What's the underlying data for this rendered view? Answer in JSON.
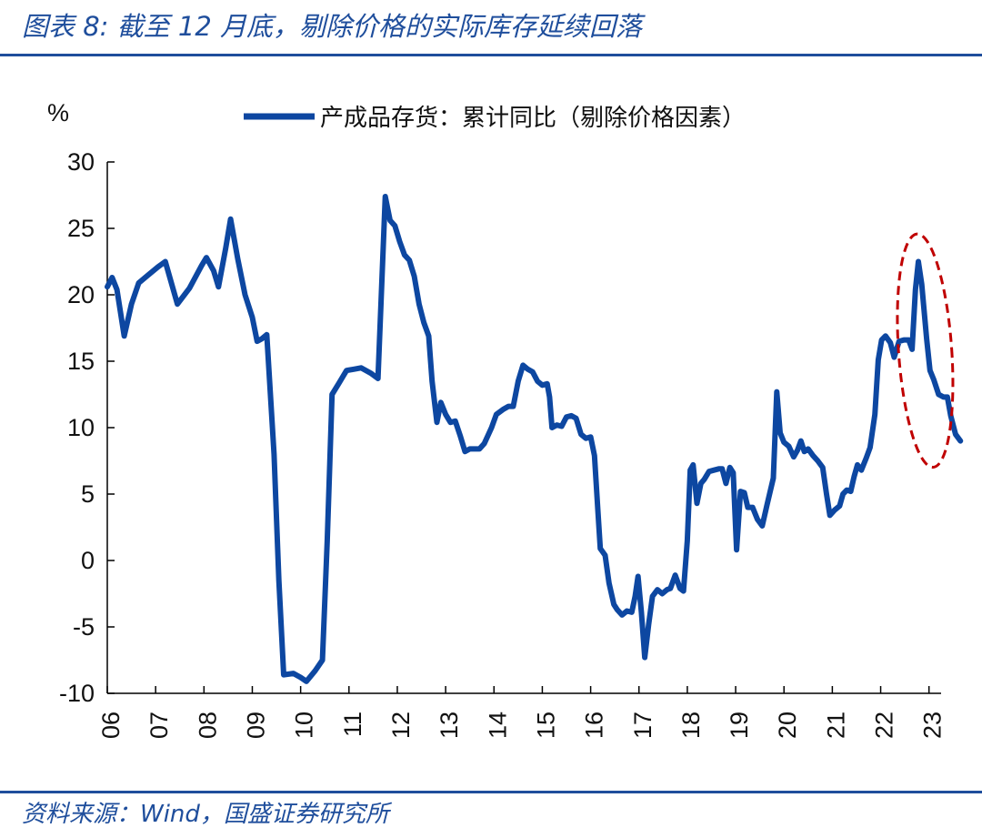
{
  "header": {
    "title": "图表 8:  截至 12 月底，剔除价格的实际库存延续回落"
  },
  "footer": {
    "source": "资料来源：Wind，国盛证券研究所"
  },
  "colors": {
    "series": "#0d47a1",
    "annotation": "#c00000",
    "title": "#1f4e9c"
  },
  "chart_data": {
    "type": "line",
    "ylabel": "%",
    "ylim": [
      -10,
      30
    ],
    "yticks": [
      30,
      25,
      20,
      15,
      10,
      5,
      0,
      -5,
      -10
    ],
    "xlim": [
      2006.0,
      2023.25
    ],
    "xticks": [
      {
        "label": "06",
        "x": 2006.0
      },
      {
        "label": "07",
        "x": 2007.0
      },
      {
        "label": "08",
        "x": 2008.0
      },
      {
        "label": "09",
        "x": 2009.0
      },
      {
        "label": "10",
        "x": 2010.0
      },
      {
        "label": "11",
        "x": 2011.0
      },
      {
        "label": "12",
        "x": 2012.0
      },
      {
        "label": "13",
        "x": 2013.0
      },
      {
        "label": "14",
        "x": 2014.0
      },
      {
        "label": "15",
        "x": 2015.0
      },
      {
        "label": "16",
        "x": 2016.0
      },
      {
        "label": "17",
        "x": 2017.0
      },
      {
        "label": "18",
        "x": 2018.0
      },
      {
        "label": "19",
        "x": 2019.0
      },
      {
        "label": "20",
        "x": 2020.0
      },
      {
        "label": "21",
        "x": 2021.0
      },
      {
        "label": "22",
        "x": 2022.0
      },
      {
        "label": "23",
        "x": 2023.0
      }
    ],
    "legend_position": "top",
    "series": [
      {
        "name": "产成品存货：累计同比（剔除价格因素）",
        "points": [
          [
            2006.0,
            20.6
          ],
          [
            2006.1,
            21.3
          ],
          [
            2006.2,
            20.4
          ],
          [
            2006.35,
            16.9
          ],
          [
            2006.5,
            19.3
          ],
          [
            2006.65,
            20.9
          ],
          [
            2006.85,
            21.5
          ],
          [
            2007.05,
            22.1
          ],
          [
            2007.2,
            22.5
          ],
          [
            2007.45,
            19.3
          ],
          [
            2007.7,
            20.5
          ],
          [
            2007.95,
            22.2
          ],
          [
            2008.05,
            22.8
          ],
          [
            2008.2,
            21.8
          ],
          [
            2008.3,
            20.6
          ],
          [
            2008.45,
            23.5
          ],
          [
            2008.55,
            25.7
          ],
          [
            2008.7,
            22.7
          ],
          [
            2008.85,
            20.0
          ],
          [
            2009.0,
            18.3
          ],
          [
            2009.1,
            16.5
          ],
          [
            2009.2,
            16.7
          ],
          [
            2009.3,
            17.0
          ],
          [
            2009.45,
            8.0
          ],
          [
            2009.55,
            -1.5
          ],
          [
            2009.65,
            -8.6
          ],
          [
            2009.85,
            -8.5
          ],
          [
            2010.0,
            -8.8
          ],
          [
            2010.12,
            -9.1
          ],
          [
            2010.3,
            -8.3
          ],
          [
            2010.45,
            -7.5
          ],
          [
            2010.55,
            1.5
          ],
          [
            2010.65,
            12.5
          ],
          [
            2010.8,
            13.4
          ],
          [
            2010.95,
            14.3
          ],
          [
            2011.1,
            14.4
          ],
          [
            2011.25,
            14.5
          ],
          [
            2011.45,
            14.1
          ],
          [
            2011.6,
            13.7
          ],
          [
            2011.75,
            27.4
          ],
          [
            2011.85,
            25.6
          ],
          [
            2011.95,
            25.2
          ],
          [
            2012.05,
            24.0
          ],
          [
            2012.15,
            23.0
          ],
          [
            2012.25,
            22.6
          ],
          [
            2012.35,
            21.4
          ],
          [
            2012.45,
            19.3
          ],
          [
            2012.55,
            17.9
          ],
          [
            2012.65,
            16.9
          ],
          [
            2012.72,
            13.5
          ],
          [
            2012.82,
            10.4
          ],
          [
            2012.9,
            11.9
          ],
          [
            2013.0,
            11.0
          ],
          [
            2013.1,
            10.4
          ],
          [
            2013.2,
            10.5
          ],
          [
            2013.3,
            9.4
          ],
          [
            2013.4,
            8.2
          ],
          [
            2013.5,
            8.4
          ],
          [
            2013.6,
            8.4
          ],
          [
            2013.7,
            8.4
          ],
          [
            2013.8,
            8.8
          ],
          [
            2013.95,
            10.0
          ],
          [
            2014.05,
            11.0
          ],
          [
            2014.2,
            11.4
          ],
          [
            2014.3,
            11.6
          ],
          [
            2014.4,
            11.6
          ],
          [
            2014.5,
            13.5
          ],
          [
            2014.6,
            14.7
          ],
          [
            2014.7,
            14.4
          ],
          [
            2014.8,
            14.2
          ],
          [
            2014.9,
            13.5
          ],
          [
            2015.0,
            13.2
          ],
          [
            2015.1,
            13.3
          ],
          [
            2015.15,
            12.3
          ],
          [
            2015.2,
            10.0
          ],
          [
            2015.3,
            10.2
          ],
          [
            2015.4,
            10.1
          ],
          [
            2015.5,
            10.8
          ],
          [
            2015.6,
            10.9
          ],
          [
            2015.7,
            10.7
          ],
          [
            2015.8,
            9.5
          ],
          [
            2015.9,
            9.2
          ],
          [
            2016.0,
            9.3
          ],
          [
            2016.08,
            7.9
          ],
          [
            2016.15,
            3.7
          ],
          [
            2016.2,
            0.9
          ],
          [
            2016.3,
            0.4
          ],
          [
            2016.38,
            -1.7
          ],
          [
            2016.48,
            -3.3
          ],
          [
            2016.55,
            -3.7
          ],
          [
            2016.65,
            -4.1
          ],
          [
            2016.75,
            -3.8
          ],
          [
            2016.85,
            -3.9
          ],
          [
            2016.92,
            -2.7
          ],
          [
            2016.98,
            -1.2
          ],
          [
            2017.05,
            -3.9
          ],
          [
            2017.12,
            -7.3
          ],
          [
            2017.2,
            -4.8
          ],
          [
            2017.28,
            -2.7
          ],
          [
            2017.38,
            -2.2
          ],
          [
            2017.48,
            -2.5
          ],
          [
            2017.58,
            -2.2
          ],
          [
            2017.65,
            -2.1
          ],
          [
            2017.75,
            -1.1
          ],
          [
            2017.85,
            -2.1
          ],
          [
            2017.92,
            -2.3
          ],
          [
            2018.0,
            1.5
          ],
          [
            2018.06,
            6.8
          ],
          [
            2018.12,
            7.2
          ],
          [
            2018.2,
            4.3
          ],
          [
            2018.28,
            5.8
          ],
          [
            2018.35,
            6.1
          ],
          [
            2018.45,
            6.7
          ],
          [
            2018.55,
            6.8
          ],
          [
            2018.65,
            6.9
          ],
          [
            2018.72,
            6.9
          ],
          [
            2018.8,
            5.8
          ],
          [
            2018.88,
            7.0
          ],
          [
            2018.95,
            6.6
          ],
          [
            2019.02,
            0.8
          ],
          [
            2019.1,
            5.2
          ],
          [
            2019.18,
            5.1
          ],
          [
            2019.25,
            4.0
          ],
          [
            2019.35,
            4.0
          ],
          [
            2019.45,
            3.1
          ],
          [
            2019.55,
            2.6
          ],
          [
            2019.65,
            4.2
          ],
          [
            2019.78,
            6.2
          ],
          [
            2019.85,
            12.7
          ],
          [
            2019.92,
            9.6
          ],
          [
            2020.0,
            8.9
          ],
          [
            2020.1,
            8.6
          ],
          [
            2020.2,
            7.8
          ],
          [
            2020.28,
            8.3
          ],
          [
            2020.35,
            9.0
          ],
          [
            2020.42,
            8.2
          ],
          [
            2020.5,
            8.4
          ],
          [
            2020.6,
            7.9
          ],
          [
            2020.7,
            7.5
          ],
          [
            2020.8,
            7.0
          ],
          [
            2020.88,
            5.0
          ],
          [
            2020.95,
            3.4
          ],
          [
            2021.05,
            3.8
          ],
          [
            2021.15,
            4.1
          ],
          [
            2021.22,
            5.0
          ],
          [
            2021.3,
            5.3
          ],
          [
            2021.38,
            5.2
          ],
          [
            2021.45,
            6.3
          ],
          [
            2021.52,
            7.2
          ],
          [
            2021.6,
            6.8
          ],
          [
            2021.7,
            7.7
          ],
          [
            2021.78,
            8.5
          ],
          [
            2021.88,
            11.0
          ],
          [
            2021.95,
            15.1
          ],
          [
            2022.02,
            16.6
          ],
          [
            2022.1,
            16.9
          ],
          [
            2022.2,
            16.4
          ],
          [
            2022.28,
            15.3
          ],
          [
            2022.38,
            16.5
          ],
          [
            2022.48,
            16.6
          ],
          [
            2022.58,
            16.6
          ],
          [
            2022.65,
            15.9
          ],
          [
            2022.72,
            20.4
          ],
          [
            2022.78,
            22.5
          ],
          [
            2022.85,
            20.8
          ],
          [
            2022.95,
            16.7
          ],
          [
            2023.02,
            14.3
          ],
          [
            2023.1,
            13.6
          ],
          [
            2023.2,
            12.5
          ],
          [
            2023.3,
            12.3
          ],
          [
            2023.38,
            12.3
          ],
          [
            2023.45,
            10.9
          ],
          [
            2023.55,
            9.5
          ],
          [
            2023.65,
            9.0
          ]
        ]
      }
    ],
    "annotations": [
      {
        "type": "ellipse",
        "style": "dashed",
        "center": [
          2022.92,
          15.8
        ],
        "radius": [
          0.55,
          8.8
        ]
      }
    ]
  }
}
